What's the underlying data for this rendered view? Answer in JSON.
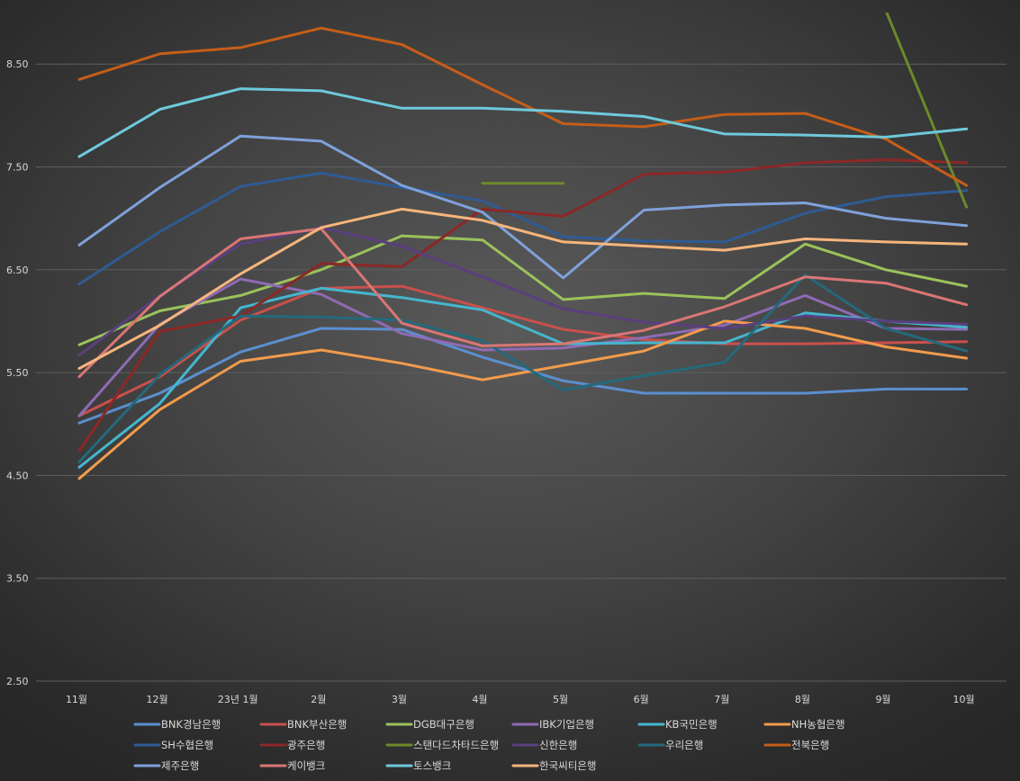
{
  "chart_data": {
    "type": "line",
    "title": "",
    "xlabel": "",
    "ylabel": "",
    "ylim": [
      2.5,
      9.0
    ],
    "yticks": [
      "2.50",
      "3.50",
      "4.50",
      "5.50",
      "6.50",
      "7.50",
      "8.50"
    ],
    "ytick_values": [
      2.5,
      3.5,
      4.5,
      5.5,
      6.5,
      7.5,
      8.5
    ],
    "categories": [
      "11월",
      "12월",
      "23년 1월",
      "2월",
      "3월",
      "4월",
      "5월",
      "6월",
      "7월",
      "8월",
      "9월",
      "10월"
    ],
    "grid": true,
    "legend_position": "bottom",
    "series": [
      {
        "name": "BNK경남은행",
        "color": "#5b8fd0",
        "values": [
          5.01,
          5.3,
          5.7,
          5.93,
          5.92,
          5.65,
          5.42,
          5.3,
          5.3,
          5.3,
          5.34,
          5.34
        ]
      },
      {
        "name": "BNK부산은행",
        "color": "#c9504c",
        "values": [
          5.08,
          5.46,
          6.01,
          6.32,
          6.34,
          6.13,
          5.92,
          5.82,
          5.78,
          5.78,
          5.79,
          5.8
        ]
      },
      {
        "name": "DGB대구은행",
        "color": "#9bc25b",
        "values": [
          5.77,
          6.1,
          6.25,
          6.5,
          6.83,
          6.79,
          6.21,
          6.27,
          6.22,
          6.75,
          6.5,
          6.34
        ]
      },
      {
        "name": "IBK기업은행",
        "color": "#8e6bb4",
        "values": [
          5.08,
          5.97,
          6.41,
          6.26,
          5.88,
          5.72,
          5.74,
          5.84,
          5.96,
          6.25,
          5.93,
          5.92
        ]
      },
      {
        "name": "KB국민은행",
        "color": "#45b6cf",
        "values": [
          4.58,
          5.2,
          6.13,
          6.32,
          6.23,
          6.11,
          5.78,
          5.79,
          5.79,
          6.08,
          6.0,
          5.94
        ]
      },
      {
        "name": "NH농협은행",
        "color": "#f29b4c",
        "values": [
          4.47,
          5.14,
          5.61,
          5.72,
          5.59,
          5.43,
          5.57,
          5.71,
          6.0,
          5.93,
          5.75,
          5.64
        ]
      },
      {
        "name": "SH수협은행",
        "color": "#2f5b93",
        "values": [
          6.36,
          6.87,
          7.31,
          7.44,
          7.3,
          7.17,
          6.82,
          6.78,
          6.77,
          7.05,
          7.21,
          7.27
        ]
      },
      {
        "name": "광주은행",
        "color": "#8b2826",
        "values": [
          4.74,
          5.9,
          6.05,
          6.56,
          6.53,
          7.09,
          7.02,
          7.43,
          7.45,
          7.54,
          7.57,
          7.54
        ]
      },
      {
        "name": "스탠다드차타드은행",
        "color": "#6b8a2a",
        "values": [
          null,
          null,
          null,
          null,
          null,
          7.34,
          7.34,
          null,
          null,
          null,
          9.02,
          7.11
        ]
      },
      {
        "name": "신한은행",
        "color": "#5a3f7e",
        "values": [
          5.67,
          6.25,
          6.75,
          6.91,
          6.73,
          6.43,
          6.12,
          5.99,
          5.93,
          6.05,
          6.0,
          5.97
        ]
      },
      {
        "name": "우리은행",
        "color": "#24697c",
        "values": [
          4.63,
          5.48,
          6.05,
          6.04,
          6.01,
          5.81,
          5.33,
          5.47,
          5.6,
          6.45,
          5.93,
          5.71
        ]
      },
      {
        "name": "전북은행",
        "color": "#c55e18",
        "values": [
          8.35,
          8.6,
          8.66,
          8.85,
          8.69,
          8.3,
          7.92,
          7.89,
          8.01,
          8.02,
          7.77,
          7.32
        ]
      },
      {
        "name": "제주은행",
        "color": "#7fa1d9",
        "values": [
          6.74,
          7.3,
          7.8,
          7.75,
          7.32,
          7.06,
          6.42,
          7.08,
          7.13,
          7.15,
          7.0,
          6.93
        ]
      },
      {
        "name": "케이뱅크",
        "color": "#d97674",
        "values": [
          5.46,
          6.24,
          6.8,
          6.9,
          5.98,
          5.76,
          5.78,
          5.91,
          6.14,
          6.43,
          6.37,
          6.16
        ]
      },
      {
        "name": "토스뱅크",
        "color": "#6ec9db",
        "values": [
          7.6,
          8.06,
          8.26,
          8.24,
          8.07,
          8.07,
          8.04,
          7.99,
          7.82,
          7.81,
          7.79,
          7.87
        ]
      },
      {
        "name": "한국씨티은행",
        "color": "#f6b57c",
        "values": [
          5.54,
          5.96,
          6.46,
          6.91,
          7.09,
          6.98,
          6.77,
          6.73,
          6.69,
          6.8,
          6.77,
          6.75
        ]
      }
    ]
  }
}
